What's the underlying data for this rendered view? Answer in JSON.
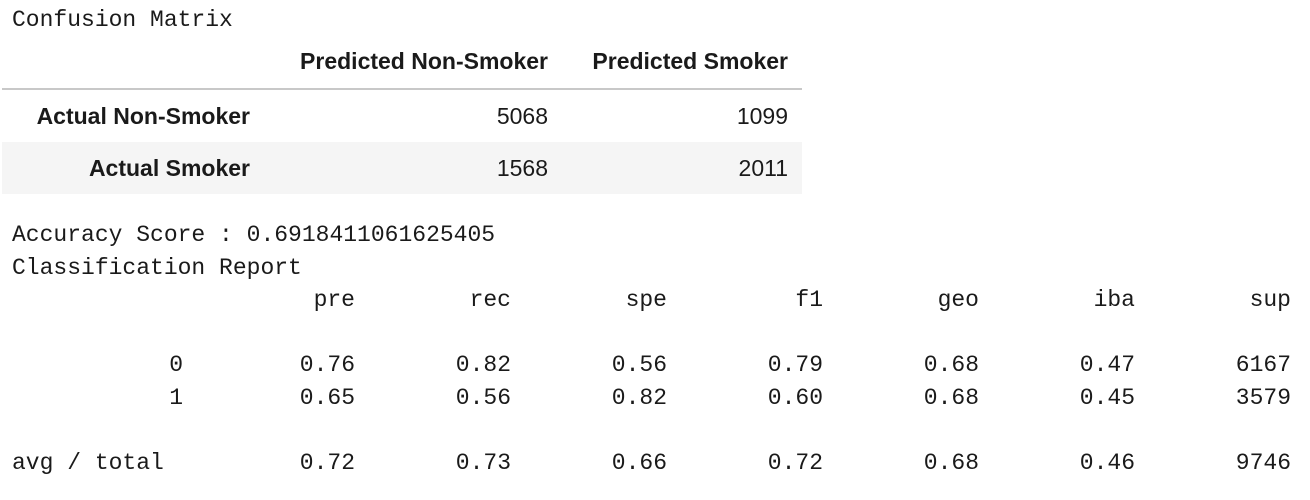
{
  "confusion": {
    "title": "Confusion Matrix",
    "columns": [
      "Predicted Non-Smoker",
      "Predicted Smoker"
    ],
    "rows": [
      {
        "label": "Actual Non-Smoker",
        "values": [
          "5068",
          "1099"
        ]
      },
      {
        "label": "Actual Smoker",
        "values": [
          "1568",
          "2011"
        ]
      }
    ]
  },
  "accuracy_line": "Accuracy Score : 0.6918411061625405",
  "report": {
    "title": "Classification Report",
    "headers": [
      "pre",
      "rec",
      "spe",
      "f1",
      "geo",
      "iba",
      "sup"
    ],
    "rows": [
      {
        "label": "0",
        "values": [
          "0.76",
          "0.82",
          "0.56",
          "0.79",
          "0.68",
          "0.47",
          "6167"
        ]
      },
      {
        "label": "1",
        "values": [
          "0.65",
          "0.56",
          "0.82",
          "0.60",
          "0.68",
          "0.45",
          "3579"
        ]
      }
    ],
    "total": {
      "label": "avg / total",
      "values": [
        "0.72",
        "0.73",
        "0.66",
        "0.72",
        "0.68",
        "0.46",
        "9746"
      ]
    }
  }
}
